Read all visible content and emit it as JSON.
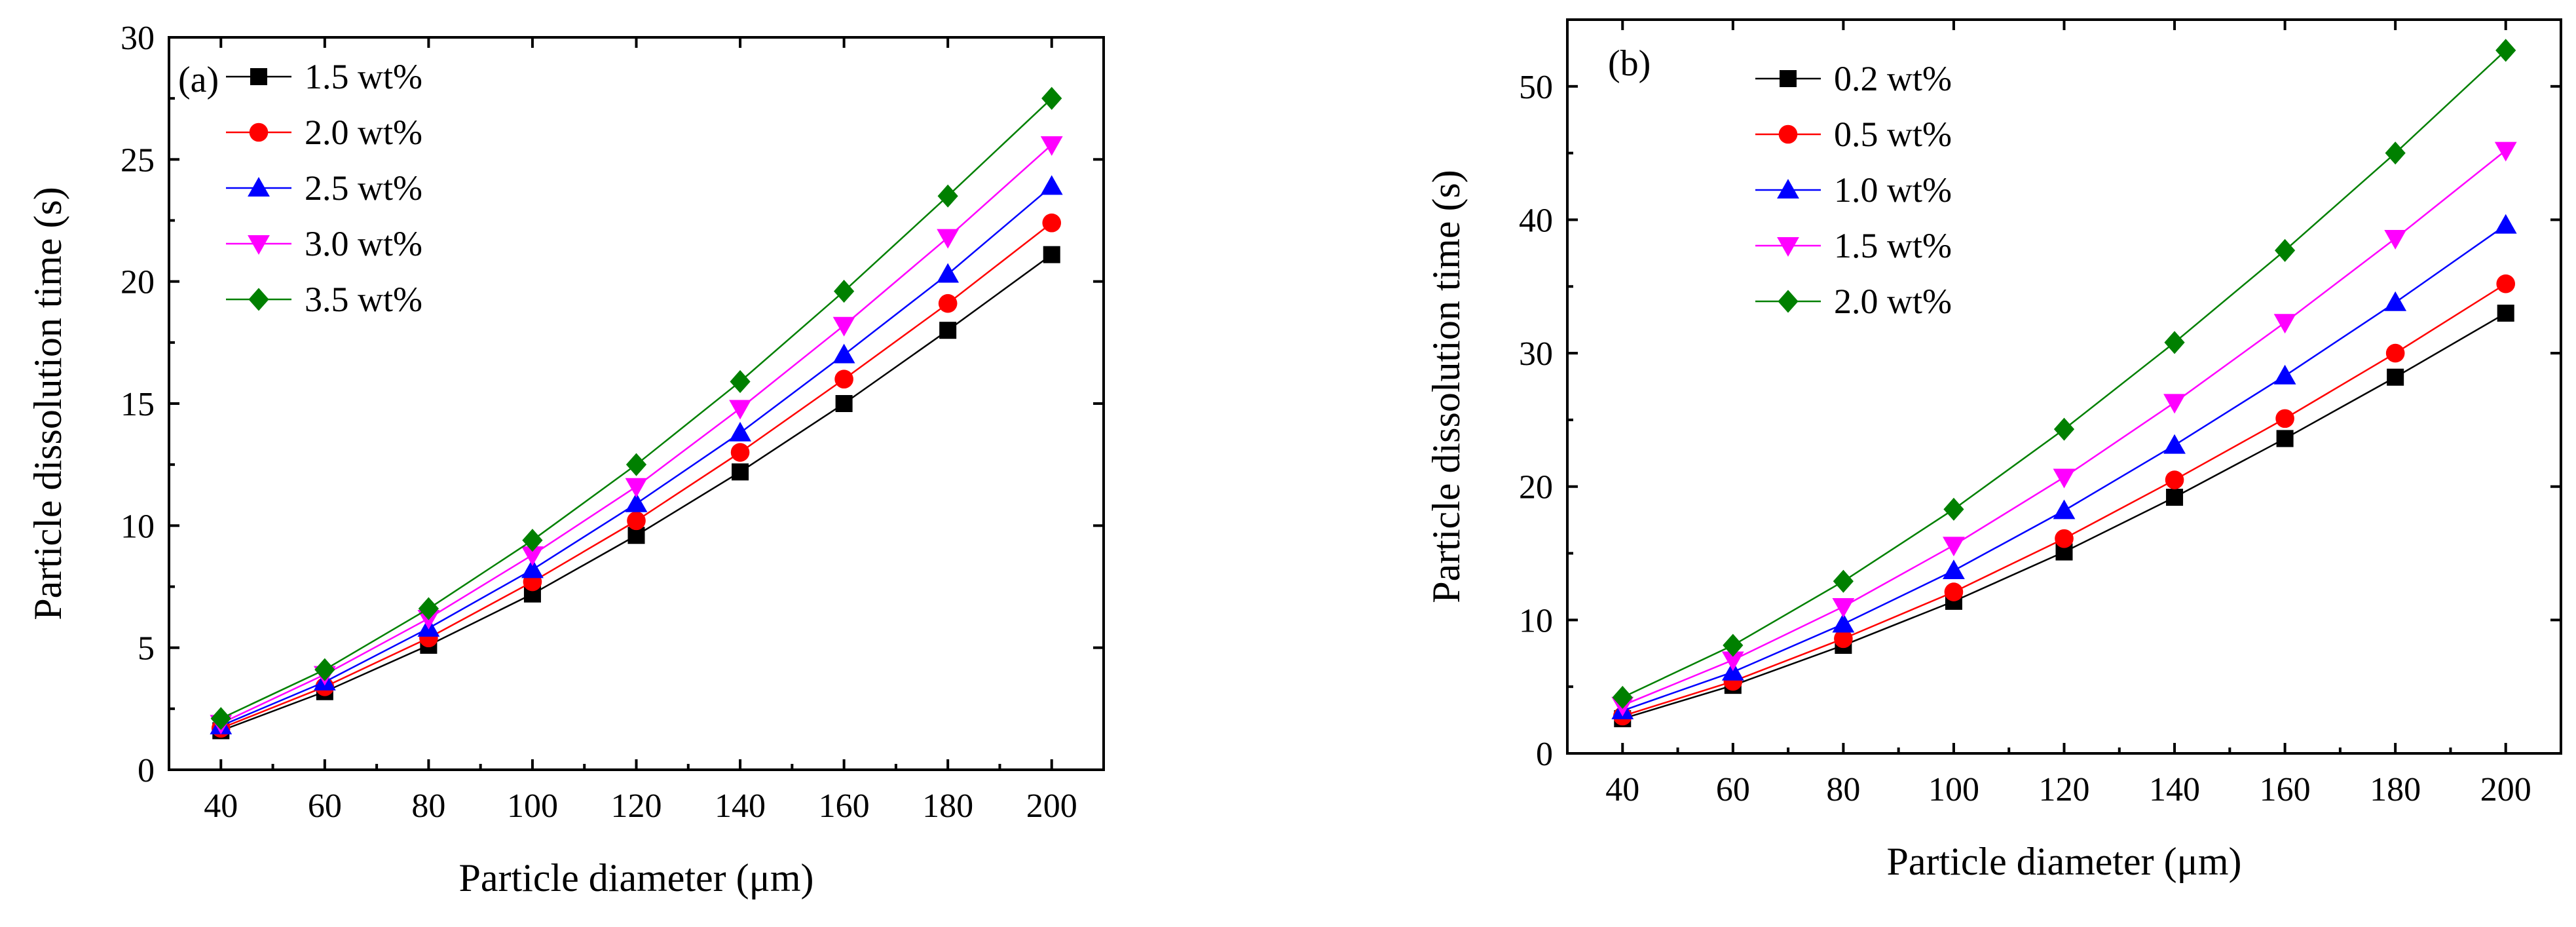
{
  "chart_data": [
    {
      "type": "line",
      "panel_label": "(a)",
      "title": "",
      "xlabel": "Particle diameter (μm)",
      "ylabel": "Particle dissolution time (s)",
      "x": [
        40,
        60,
        80,
        100,
        120,
        140,
        160,
        180,
        200
      ],
      "xlim": [
        30,
        210
      ],
      "ylim": [
        0,
        30
      ],
      "xticks": [
        40,
        60,
        80,
        100,
        120,
        140,
        160,
        180,
        200
      ],
      "yticks": [
        0,
        5,
        10,
        15,
        20,
        25,
        30
      ],
      "legend_position": "top-left",
      "series": [
        {
          "name": "1.5 wt%",
          "color": "#000000",
          "marker": "square",
          "values": [
            1.6,
            3.2,
            5.1,
            7.2,
            9.6,
            12.2,
            15.0,
            18.0,
            21.1
          ]
        },
        {
          "name": "2.0 wt%",
          "color": "#ff0000",
          "marker": "circle",
          "values": [
            1.7,
            3.4,
            5.4,
            7.7,
            10.2,
            13.0,
            16.0,
            19.1,
            22.4
          ]
        },
        {
          "name": "2.5 wt%",
          "color": "#0000ff",
          "marker": "triangle-up",
          "values": [
            1.8,
            3.6,
            5.8,
            8.2,
            10.9,
            13.8,
            17.0,
            20.3,
            23.9
          ]
        },
        {
          "name": "3.0 wt%",
          "color": "#ff00ff",
          "marker": "triangle-down",
          "values": [
            1.9,
            3.9,
            6.2,
            8.8,
            11.6,
            14.8,
            18.2,
            21.8,
            25.6
          ]
        },
        {
          "name": "3.5 wt%",
          "color": "#008000",
          "marker": "diamond",
          "values": [
            2.1,
            4.1,
            6.6,
            9.4,
            12.5,
            15.9,
            19.6,
            23.5,
            27.5
          ]
        }
      ]
    },
    {
      "type": "line",
      "panel_label": "(b)",
      "title": "",
      "xlabel": "Particle diameter (μm)",
      "ylabel": "Particle dissolution time (s)",
      "x": [
        40,
        60,
        80,
        100,
        120,
        140,
        160,
        180,
        200
      ],
      "xlim": [
        30,
        210
      ],
      "ylim": [
        0,
        55
      ],
      "xticks": [
        40,
        60,
        80,
        100,
        120,
        140,
        160,
        180,
        200
      ],
      "yticks": [
        0,
        10,
        20,
        30,
        40,
        50
      ],
      "legend_position": "top-left",
      "series": [
        {
          "name": "0.2 wt%",
          "color": "#000000",
          "marker": "square",
          "values": [
            2.6,
            5.1,
            8.1,
            11.4,
            15.1,
            19.2,
            23.6,
            28.2,
            33.0
          ]
        },
        {
          "name": "0.5 wt%",
          "color": "#ff0000",
          "marker": "circle",
          "values": [
            2.8,
            5.4,
            8.6,
            12.1,
            16.1,
            20.5,
            25.1,
            30.0,
            35.2
          ]
        },
        {
          "name": "1.0 wt%",
          "color": "#0000ff",
          "marker": "triangle-up",
          "values": [
            3.2,
            6.1,
            9.7,
            13.7,
            18.2,
            23.1,
            28.3,
            33.8,
            39.6
          ]
        },
        {
          "name": "1.5 wt%",
          "color": "#ff00ff",
          "marker": "triangle-down",
          "values": [
            3.6,
            7.0,
            11.0,
            15.6,
            20.7,
            26.3,
            32.3,
            38.6,
            45.2
          ]
        },
        {
          "name": "2.0 wt%",
          "color": "#008000",
          "marker": "diamond",
          "values": [
            4.2,
            8.1,
            12.9,
            18.3,
            24.3,
            30.8,
            37.7,
            45.0,
            52.7
          ]
        }
      ]
    }
  ]
}
